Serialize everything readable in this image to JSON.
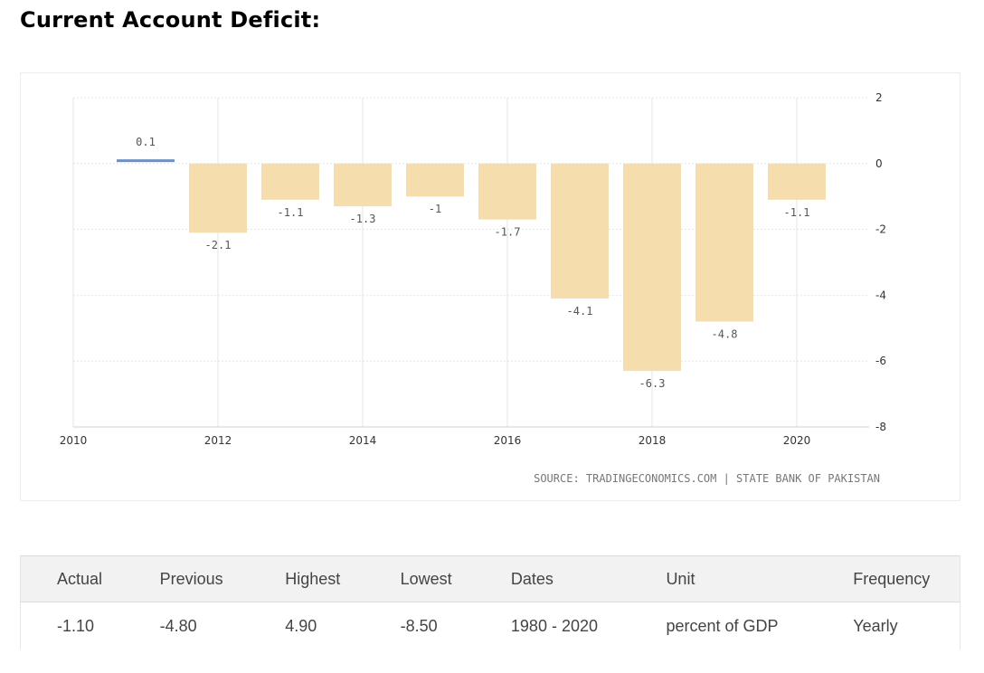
{
  "page": {
    "title": "Current Account Deficit:"
  },
  "chart_data": {
    "type": "bar",
    "title": "",
    "xlabel": "",
    "ylabel": "",
    "categories": [
      "2011",
      "2012",
      "2013",
      "2014",
      "2015",
      "2016",
      "2017",
      "2018",
      "2019",
      "2020"
    ],
    "values": [
      0.1,
      -2.1,
      -1.1,
      -1.3,
      -1,
      -1.7,
      -4.1,
      -6.3,
      -4.8,
      -1.1
    ],
    "data_labels": [
      "0.1",
      "-2.1",
      "-1.1",
      "-1.3",
      "-1",
      "-1.7",
      "-4.1",
      "-6.3",
      "-4.8",
      "-1.1"
    ],
    "x_ticks": [
      "2010",
      "2012",
      "2014",
      "2016",
      "2018",
      "2020"
    ],
    "y_ticks": [
      "2",
      "0",
      "-2",
      "-4",
      "-6",
      "-8"
    ],
    "ylim": [
      -8,
      2
    ],
    "xlim": [
      2010,
      2021
    ],
    "grid": true,
    "y_axis_side": "right",
    "colors": {
      "positive": "#6e8fbf",
      "negative": "#f5ddad",
      "grid": "#e6e6e6"
    },
    "source": "SOURCE: TRADINGECONOMICS.COM | STATE BANK OF PAKISTAN"
  },
  "stats_table": {
    "headers": [
      "Actual",
      "Previous",
      "Highest",
      "Lowest",
      "Dates",
      "Unit",
      "Frequency"
    ],
    "values": [
      "-1.10",
      "-4.80",
      "4.90",
      "-8.50",
      "1980 - 2020",
      "percent of GDP",
      "Yearly"
    ]
  }
}
